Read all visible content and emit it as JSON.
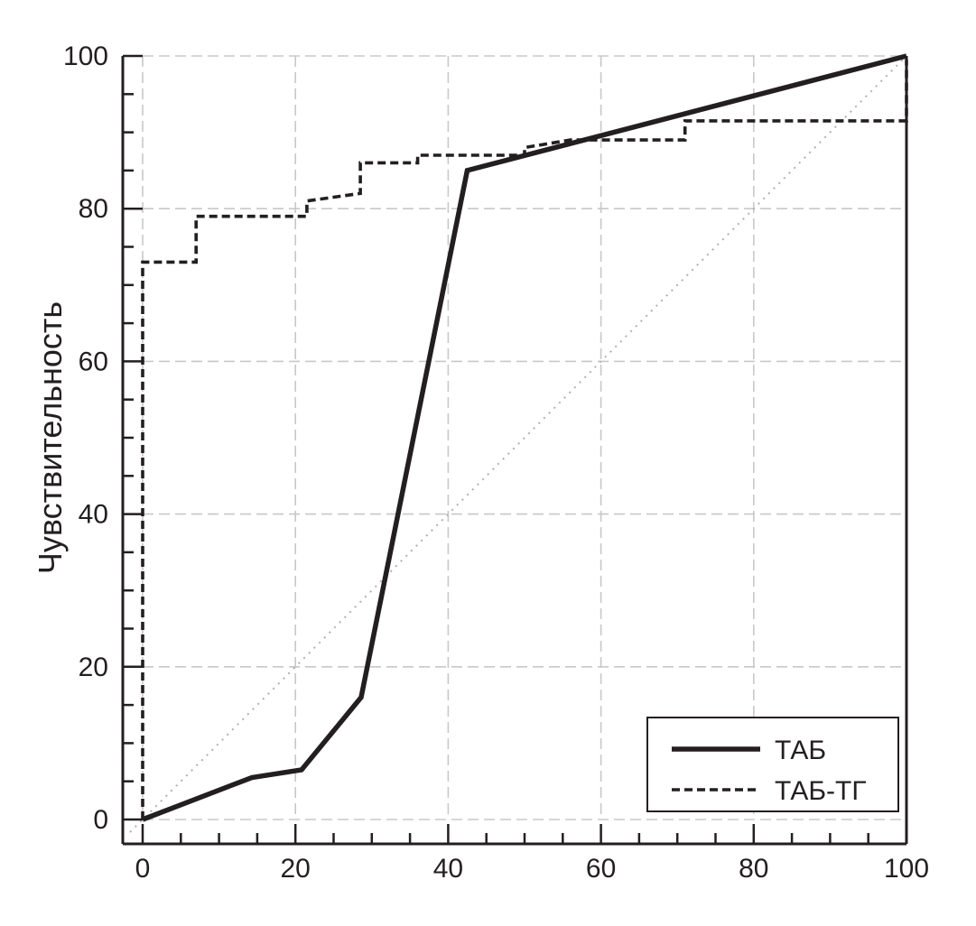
{
  "chart_data": {
    "type": "line",
    "title": "",
    "xlabel": "",
    "ylabel": "Чувствительность",
    "xlim": [
      0,
      100
    ],
    "ylim": [
      0,
      100
    ],
    "x_ticks": [
      "0",
      "20",
      "40",
      "60",
      "80",
      "100"
    ],
    "y_ticks": [
      "0",
      "20",
      "40",
      "60",
      "80",
      "100"
    ],
    "grid": true,
    "legend_position": "bottom-right",
    "reference_line": {
      "x": [
        0,
        100
      ],
      "y": [
        0,
        100
      ],
      "style": "dotted"
    },
    "series": [
      {
        "name": "ТАБ",
        "style": "solid",
        "color": "#231f20",
        "x": [
          0,
          14.3,
          20.8,
          28.6,
          42.5,
          100
        ],
        "y": [
          0,
          5.5,
          6.5,
          16,
          85,
          100
        ]
      },
      {
        "name": "ТАБ-ТГ",
        "style": "dashed",
        "color": "#231f20",
        "x": [
          0,
          0,
          7,
          7,
          21.5,
          21.5,
          28.5,
          28.5,
          36,
          36,
          50,
          50,
          56,
          56,
          71,
          71,
          100,
          100
        ],
        "y": [
          0,
          73,
          73,
          79,
          79,
          81,
          82,
          86,
          86,
          87,
          87,
          88,
          89,
          89,
          89,
          91.5,
          91.5,
          99.5
        ]
      }
    ]
  }
}
